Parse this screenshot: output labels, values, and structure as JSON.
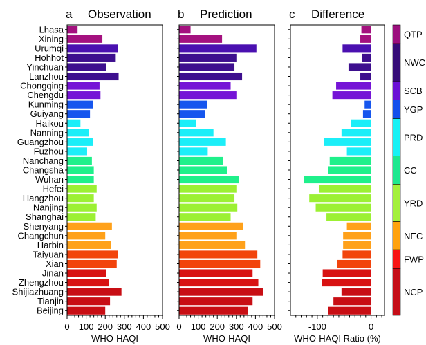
{
  "figure": {
    "cities": [
      "Lhasa",
      "Xining",
      "Urumqi",
      "Hohhot",
      "Yinchuan",
      "Lanzhou",
      "Chongqing",
      "Chengdu",
      "Kunming",
      "Guiyang",
      "Haikou",
      "Nanning",
      "Guangzhou",
      "Fuzhou",
      "Nanchang",
      "Changsha",
      "Wuhan",
      "Hefei",
      "Hangzhou",
      "Nanjing",
      "Shanghai",
      "Shenyang",
      "Changchun",
      "Harbin",
      "Taiyuan",
      "Xian",
      "Jinan",
      "Zhengzhou",
      "Shijiazhuang",
      "Tianjin",
      "Beijing"
    ],
    "region_of_city": [
      "QTP",
      "QTP",
      "NWC",
      "NWC",
      "NWC",
      "NWC",
      "SCB",
      "SCB",
      "YGP",
      "YGP",
      "PRD",
      "PRD",
      "PRD",
      "PRD",
      "CC",
      "CC",
      "CC",
      "YRD",
      "YRD",
      "YRD",
      "YRD",
      "NEC",
      "NEC",
      "NEC",
      "FWP",
      "FWP",
      "NCP",
      "NCP",
      "NCP",
      "NCP",
      "NCP"
    ],
    "regions": [
      {
        "code": "QTP",
        "color": "#9c0f7e"
      },
      {
        "code": "NWC",
        "color": "#360c78"
      },
      {
        "code": "SCB",
        "color": "#6b10d6"
      },
      {
        "code": "YGP",
        "color": "#1450ec"
      },
      {
        "code": "PRD",
        "color": "#18f2f5"
      },
      {
        "code": "CC",
        "color": "#1ee88f"
      },
      {
        "code": "YRD",
        "color": "#a3f03c"
      },
      {
        "code": "NEC",
        "color": "#ffa20e"
      },
      {
        "code": "FWP",
        "color": "#f81414"
      },
      {
        "code": "NCP",
        "color": "#c50d17"
      }
    ],
    "bar_colors": [
      "#a4117f",
      "#a4117f",
      "#4a10b0",
      "#3d0f8e",
      "#3d0f8e",
      "#3d0f8e",
      "#7514d6",
      "#7514d6",
      "#1656ee",
      "#1656ee",
      "#1ceef8",
      "#1ceef8",
      "#1ceef8",
      "#1ceef8",
      "#1ff08b",
      "#1ff08b",
      "#1ff08b",
      "#9cf033",
      "#9cf033",
      "#9cf033",
      "#9cf033",
      "#ffa11a",
      "#ffa11a",
      "#ffa11a",
      "#f2440c",
      "#f2440c",
      "#d81212",
      "#d81212",
      "#c80e14",
      "#c80e14",
      "#c80e14"
    ]
  },
  "chart_data": [
    {
      "type": "bar",
      "orientation": "horizontal",
      "panel_letter": "a",
      "title": "Observation",
      "xlabel": "WHO-HAQI",
      "xlim": [
        0,
        500
      ],
      "xticks": [
        0,
        100,
        200,
        300,
        400,
        500
      ],
      "xtick_labels": [
        "0",
        "100",
        "200",
        "300",
        "400",
        "500"
      ],
      "categories_ref": "figure.cities",
      "values": [
        55,
        185,
        265,
        255,
        205,
        270,
        170,
        175,
        135,
        120,
        70,
        115,
        135,
        105,
        130,
        140,
        140,
        155,
        140,
        155,
        150,
        235,
        200,
        230,
        265,
        260,
        205,
        220,
        285,
        225,
        200
      ]
    },
    {
      "type": "bar",
      "orientation": "horizontal",
      "panel_letter": "b",
      "title": "Prediction",
      "xlabel": "WHO-HAQI",
      "xlim": [
        0,
        500
      ],
      "xticks": [
        0,
        100,
        200,
        300,
        400,
        500
      ],
      "xtick_labels": [
        "0",
        "100",
        "200",
        "300",
        "400",
        "500"
      ],
      "categories_ref": "figure.cities",
      "values": [
        60,
        225,
        405,
        300,
        290,
        330,
        270,
        300,
        145,
        135,
        90,
        180,
        245,
        150,
        230,
        250,
        315,
        300,
        290,
        305,
        270,
        335,
        300,
        345,
        410,
        425,
        385,
        415,
        440,
        385,
        360
      ]
    },
    {
      "type": "bar",
      "orientation": "horizontal",
      "panel_letter": "c",
      "title": "Difference",
      "xlabel": "WHO-HAQI Ratio (%)",
      "xlim": [
        -150,
        25
      ],
      "xticks": [
        -100,
        0
      ],
      "xtick_labels": [
        "-100",
        "0"
      ],
      "categories_ref": "figure.cities",
      "values": [
        -18,
        -20,
        -53,
        -17,
        -42,
        -20,
        -65,
        -72,
        -12,
        -15,
        -37,
        -55,
        -88,
        -45,
        -77,
        -80,
        -125,
        -97,
        -115,
        -103,
        -83,
        -45,
        -52,
        -52,
        -53,
        -63,
        -90,
        -92,
        -55,
        -70,
        -80
      ]
    }
  ]
}
